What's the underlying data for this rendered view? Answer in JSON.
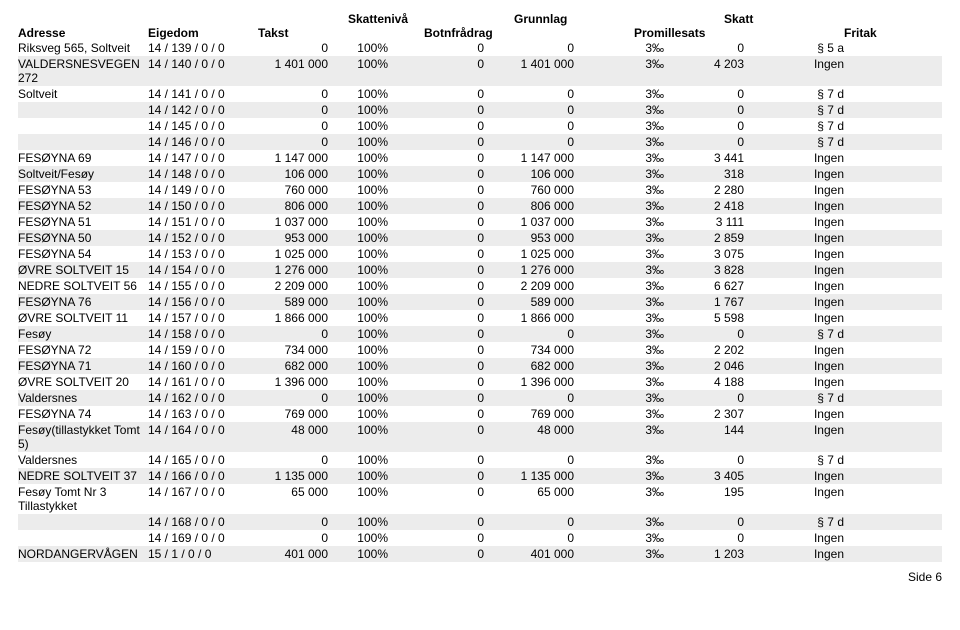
{
  "headers": {
    "top": {
      "skatteniva": "Skattenivå",
      "grunnlag": "Grunnlag",
      "skatt": "Skatt"
    },
    "bottom": {
      "adresse": "Adresse",
      "eigedom": "Eigedom",
      "takst": "Takst",
      "botnfradrag": "Botnfrådrag",
      "promillesats": "Promillesats",
      "fritak": "Fritak"
    }
  },
  "footer": "Side 6",
  "rows": [
    {
      "adresse": "Riksveg 565, Soltveit",
      "eigedom": "14 / 139 / 0 / 0",
      "takst": "0",
      "skn": "100%",
      "botn": "0",
      "grunn": "0",
      "prom": "3‰",
      "skatt": "0",
      "fritak": "§ 5 a",
      "alt": false
    },
    {
      "adresse": "VALDERSNESVEGEN 272",
      "eigedom": "14 / 140 / 0 / 0",
      "takst": "1 401 000",
      "skn": "100%",
      "botn": "0",
      "grunn": "1 401 000",
      "prom": "3‰",
      "skatt": "4 203",
      "fritak": "Ingen",
      "alt": true
    },
    {
      "adresse": "Soltveit",
      "eigedom": "14 / 141 / 0 / 0",
      "takst": "0",
      "skn": "100%",
      "botn": "0",
      "grunn": "0",
      "prom": "3‰",
      "skatt": "0",
      "fritak": "§ 7 d",
      "alt": false
    },
    {
      "adresse": "",
      "eigedom": "14 / 142 / 0 / 0",
      "takst": "0",
      "skn": "100%",
      "botn": "0",
      "grunn": "0",
      "prom": "3‰",
      "skatt": "0",
      "fritak": "§ 7 d",
      "alt": true
    },
    {
      "adresse": "",
      "eigedom": "14 / 145 / 0 / 0",
      "takst": "0",
      "skn": "100%",
      "botn": "0",
      "grunn": "0",
      "prom": "3‰",
      "skatt": "0",
      "fritak": "§ 7 d",
      "alt": false
    },
    {
      "adresse": "",
      "eigedom": "14 / 146 / 0 / 0",
      "takst": "0",
      "skn": "100%",
      "botn": "0",
      "grunn": "0",
      "prom": "3‰",
      "skatt": "0",
      "fritak": "§ 7 d",
      "alt": true
    },
    {
      "adresse": "FESØYNA 69",
      "eigedom": "14 / 147 / 0 / 0",
      "takst": "1 147 000",
      "skn": "100%",
      "botn": "0",
      "grunn": "1 147 000",
      "prom": "3‰",
      "skatt": "3 441",
      "fritak": "Ingen",
      "alt": false
    },
    {
      "adresse": "Soltveit/Fesøy",
      "eigedom": "14 / 148 / 0 / 0",
      "takst": "106 000",
      "skn": "100%",
      "botn": "0",
      "grunn": "106 000",
      "prom": "3‰",
      "skatt": "318",
      "fritak": "Ingen",
      "alt": true
    },
    {
      "adresse": "FESØYNA 53",
      "eigedom": "14 / 149 / 0 / 0",
      "takst": "760 000",
      "skn": "100%",
      "botn": "0",
      "grunn": "760 000",
      "prom": "3‰",
      "skatt": "2 280",
      "fritak": "Ingen",
      "alt": false
    },
    {
      "adresse": "FESØYNA 52",
      "eigedom": "14 / 150 / 0 / 0",
      "takst": "806 000",
      "skn": "100%",
      "botn": "0",
      "grunn": "806 000",
      "prom": "3‰",
      "skatt": "2 418",
      "fritak": "Ingen",
      "alt": true
    },
    {
      "adresse": "FESØYNA 51",
      "eigedom": "14 / 151 / 0 / 0",
      "takst": "1 037 000",
      "skn": "100%",
      "botn": "0",
      "grunn": "1 037 000",
      "prom": "3‰",
      "skatt": "3 111",
      "fritak": "Ingen",
      "alt": false
    },
    {
      "adresse": "FESØYNA 50",
      "eigedom": "14 / 152 / 0 / 0",
      "takst": "953 000",
      "skn": "100%",
      "botn": "0",
      "grunn": "953 000",
      "prom": "3‰",
      "skatt": "2 859",
      "fritak": "Ingen",
      "alt": true
    },
    {
      "adresse": "FESØYNA 54",
      "eigedom": "14 / 153 / 0 / 0",
      "takst": "1 025 000",
      "skn": "100%",
      "botn": "0",
      "grunn": "1 025 000",
      "prom": "3‰",
      "skatt": "3 075",
      "fritak": "Ingen",
      "alt": false
    },
    {
      "adresse": "ØVRE SOLTVEIT 15",
      "eigedom": "14 / 154 / 0 / 0",
      "takst": "1 276 000",
      "skn": "100%",
      "botn": "0",
      "grunn": "1 276 000",
      "prom": "3‰",
      "skatt": "3 828",
      "fritak": "Ingen",
      "alt": true
    },
    {
      "adresse": "NEDRE SOLTVEIT 56",
      "eigedom": "14 / 155 / 0 / 0",
      "takst": "2 209 000",
      "skn": "100%",
      "botn": "0",
      "grunn": "2 209 000",
      "prom": "3‰",
      "skatt": "6 627",
      "fritak": "Ingen",
      "alt": false
    },
    {
      "adresse": "FESØYNA 76",
      "eigedom": "14 / 156 / 0 / 0",
      "takst": "589 000",
      "skn": "100%",
      "botn": "0",
      "grunn": "589 000",
      "prom": "3‰",
      "skatt": "1 767",
      "fritak": "Ingen",
      "alt": true
    },
    {
      "adresse": "ØVRE SOLTVEIT 11",
      "eigedom": "14 / 157 / 0 / 0",
      "takst": "1 866 000",
      "skn": "100%",
      "botn": "0",
      "grunn": "1 866 000",
      "prom": "3‰",
      "skatt": "5 598",
      "fritak": "Ingen",
      "alt": false
    },
    {
      "adresse": "Fesøy",
      "eigedom": "14 / 158 / 0 / 0",
      "takst": "0",
      "skn": "100%",
      "botn": "0",
      "grunn": "0",
      "prom": "3‰",
      "skatt": "0",
      "fritak": "§ 7 d",
      "alt": true
    },
    {
      "adresse": "FESØYNA 72",
      "eigedom": "14 / 159 / 0 / 0",
      "takst": "734 000",
      "skn": "100%",
      "botn": "0",
      "grunn": "734 000",
      "prom": "3‰",
      "skatt": "2 202",
      "fritak": "Ingen",
      "alt": false
    },
    {
      "adresse": "FESØYNA 71",
      "eigedom": "14 / 160 / 0 / 0",
      "takst": "682 000",
      "skn": "100%",
      "botn": "0",
      "grunn": "682 000",
      "prom": "3‰",
      "skatt": "2 046",
      "fritak": "Ingen",
      "alt": true
    },
    {
      "adresse": "ØVRE SOLTVEIT 20",
      "eigedom": "14 / 161 / 0 / 0",
      "takst": "1 396 000",
      "skn": "100%",
      "botn": "0",
      "grunn": "1 396 000",
      "prom": "3‰",
      "skatt": "4 188",
      "fritak": "Ingen",
      "alt": false
    },
    {
      "adresse": "Valdersnes",
      "eigedom": "14 / 162 / 0 / 0",
      "takst": "0",
      "skn": "100%",
      "botn": "0",
      "grunn": "0",
      "prom": "3‰",
      "skatt": "0",
      "fritak": "§ 7 d",
      "alt": true
    },
    {
      "adresse": "FESØYNA 74",
      "eigedom": "14 / 163 / 0 / 0",
      "takst": "769 000",
      "skn": "100%",
      "botn": "0",
      "grunn": "769 000",
      "prom": "3‰",
      "skatt": "2 307",
      "fritak": "Ingen",
      "alt": false
    },
    {
      "adresse": "Fesøy(tillastykket Tomt 5)",
      "eigedom": "14 / 164 / 0 / 0",
      "takst": "48 000",
      "skn": "100%",
      "botn": "0",
      "grunn": "48 000",
      "prom": "3‰",
      "skatt": "144",
      "fritak": "Ingen",
      "alt": true
    },
    {
      "adresse": "Valdersnes",
      "eigedom": "14 / 165 / 0 / 0",
      "takst": "0",
      "skn": "100%",
      "botn": "0",
      "grunn": "0",
      "prom": "3‰",
      "skatt": "0",
      "fritak": "§ 7 d",
      "alt": false
    },
    {
      "adresse": "NEDRE SOLTVEIT 37",
      "eigedom": "14 / 166 / 0 / 0",
      "takst": "1 135 000",
      "skn": "100%",
      "botn": "0",
      "grunn": "1 135 000",
      "prom": "3‰",
      "skatt": "3 405",
      "fritak": "Ingen",
      "alt": true
    },
    {
      "adresse": "Fesøy Tomt Nr 3 Tillastykket",
      "eigedom": "14 / 167 / 0 / 0",
      "takst": "65 000",
      "skn": "100%",
      "botn": "0",
      "grunn": "65 000",
      "prom": "3‰",
      "skatt": "195",
      "fritak": "Ingen",
      "alt": false
    },
    {
      "adresse": "",
      "eigedom": "14 / 168 / 0 / 0",
      "takst": "0",
      "skn": "100%",
      "botn": "0",
      "grunn": "0",
      "prom": "3‰",
      "skatt": "0",
      "fritak": "§ 7 d",
      "alt": true
    },
    {
      "adresse": "",
      "eigedom": "14 / 169 / 0 / 0",
      "takst": "0",
      "skn": "100%",
      "botn": "0",
      "grunn": "0",
      "prom": "3‰",
      "skatt": "0",
      "fritak": "Ingen",
      "alt": false
    },
    {
      "adresse": "NORDANGERVÅGEN",
      "eigedom": "15 / 1 / 0 / 0",
      "takst": "401 000",
      "skn": "100%",
      "botn": "0",
      "grunn": "401 000",
      "prom": "3‰",
      "skatt": "1 203",
      "fritak": "Ingen",
      "alt": true
    }
  ]
}
